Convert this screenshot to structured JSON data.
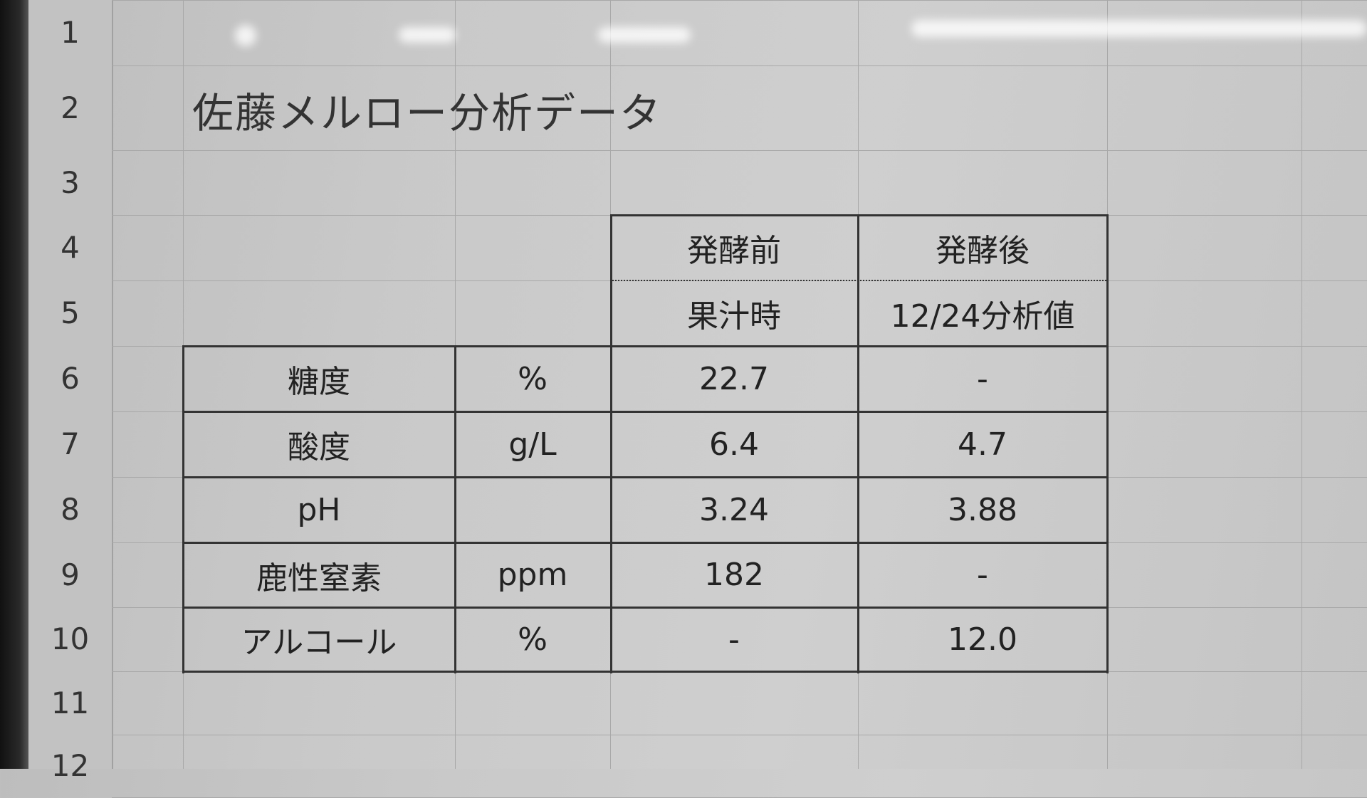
{
  "sheet": {
    "row_numbers": [
      "1",
      "2",
      "3",
      "4",
      "5",
      "6",
      "7",
      "8",
      "9",
      "10",
      "11",
      "12"
    ],
    "title": "佐藤メルロー分析データ",
    "headers": {
      "before": "発酵前",
      "after": "発酵後",
      "before_sub": "果汁時",
      "after_sub": "12/24分析値"
    },
    "rows": [
      {
        "item": "糖度",
        "unit": "%",
        "before": "22.7",
        "after": "-"
      },
      {
        "item": "酸度",
        "unit": "g/L",
        "before": "6.4",
        "after": "4.7"
      },
      {
        "item": "pH",
        "unit": "",
        "before": "3.24",
        "after": "3.88"
      },
      {
        "item": "鹿性窒素",
        "unit": "ppm",
        "before": "182",
        "after": "-"
      },
      {
        "item": "アルコール",
        "unit": "%",
        "before": "-",
        "after": "12.0"
      }
    ]
  }
}
